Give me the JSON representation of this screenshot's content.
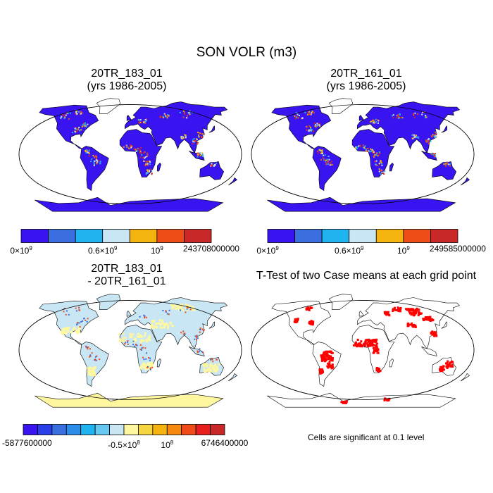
{
  "title": "SON VOLR (m3)",
  "panels": [
    {
      "id": "p1",
      "title_lines": [
        "20TR_183_01",
        "(yrs 1986-2005)"
      ],
      "map_style": "magnitude"
    },
    {
      "id": "p2",
      "title_lines": [
        "20TR_161_01",
        "(yrs 1986-2005)"
      ],
      "map_style": "magnitude"
    },
    {
      "id": "p3",
      "title_lines": [
        "20TR_183_01",
        "- 20TR_161_01"
      ],
      "map_style": "difference"
    },
    {
      "id": "p4",
      "title_lines": [
        "T-Test of two Case means at each grid point"
      ],
      "map_style": "significance"
    }
  ],
  "colorbars": [
    {
      "id": "cb1",
      "colors": [
        "#3a14f0",
        "#3b6fe0",
        "#1fb3f0",
        "#c9e6f5",
        "#f5b30f",
        "#f04c1a",
        "#c82828"
      ],
      "labels": [
        {
          "pos": 0,
          "base": "0",
          "exp": "9",
          "text": ""
        },
        {
          "pos": 3,
          "base": "0.6",
          "exp": "9",
          "text": ""
        },
        {
          "pos": 5,
          "base": "",
          "exp": "9",
          "text": ""
        },
        {
          "pos": 7,
          "base": "",
          "exp": "",
          "text": "243708000000"
        }
      ]
    },
    {
      "id": "cb2",
      "colors": [
        "#3a14f0",
        "#3b6fe0",
        "#1fb3f0",
        "#c9e6f5",
        "#f5b30f",
        "#f04c1a",
        "#c82828"
      ],
      "labels": [
        {
          "pos": 0,
          "base": "0",
          "exp": "9",
          "text": ""
        },
        {
          "pos": 3,
          "base": "0.6",
          "exp": "9",
          "text": ""
        },
        {
          "pos": 5,
          "base": "",
          "exp": "9",
          "text": ""
        },
        {
          "pos": 7,
          "base": "",
          "exp": "",
          "text": "249585000000"
        }
      ]
    },
    {
      "id": "cb3",
      "colors": [
        "#3a14f0",
        "#2a3ee8",
        "#3a6fe0",
        "#2a8ee8",
        "#1fb3f0",
        "#66c8f0",
        "#c9e6f5",
        "#fff7a0",
        "#f5d540",
        "#f5b30f",
        "#f58a0f",
        "#f04c1a",
        "#e61e1e",
        "#c82828"
      ],
      "labels": [
        {
          "pos": 0,
          "base": "",
          "exp": "",
          "text": "-5877600000"
        },
        {
          "pos": 7,
          "base": "-0.5",
          "exp": "8",
          "text": ""
        },
        {
          "pos": 10,
          "base": "",
          "exp": "8",
          "text": ""
        },
        {
          "pos": 14,
          "base": "",
          "exp": "",
          "text": "6746400000"
        }
      ]
    }
  ],
  "footnote": "Cells are significant at 0.1 level",
  "colors": {
    "ocean": "#ffffff",
    "magnitude_land": "#3a14f0",
    "difference_land": "#c9e6f5",
    "difference_dry": "#fff7a0",
    "significant": "#ff0000"
  }
}
